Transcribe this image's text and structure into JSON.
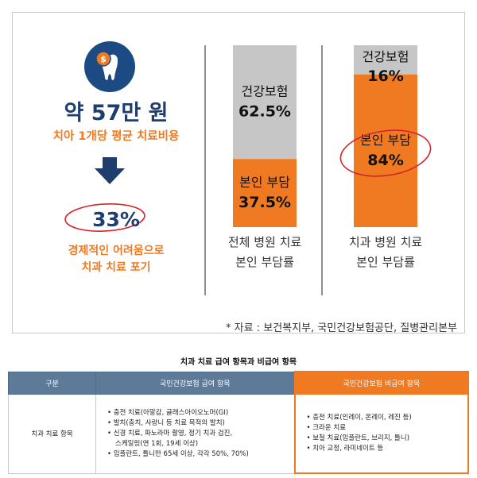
{
  "infographic": {
    "cost_value": "약 57만 원",
    "cost_caption": "치아 1개당 평균 치료비용",
    "gave_up_pct": "33%",
    "gave_up_caption_line1": "경제적인 어려움으로",
    "gave_up_caption_line2": "치과 치료 포기",
    "icons": [
      "dollar-tooth-icon",
      "down-arrow-icon"
    ],
    "colors": {
      "navy": "#1c4a82",
      "orange": "#ef7a22",
      "gray": "#c6c6c6",
      "red": "#d4262a"
    }
  },
  "chart_data": {
    "type": "bar",
    "stacked": true,
    "normalized": true,
    "categories": [
      "전체 병원 치료\n본인 부담률",
      "치과 병원 치료\n본인 부담률"
    ],
    "series": [
      {
        "name": "본인 부담",
        "values": [
          37.5,
          84
        ],
        "color": "#ef7a22"
      },
      {
        "name": "건강보험",
        "values": [
          62.5,
          16
        ],
        "color": "#c6c6c6"
      }
    ],
    "ylim": [
      0,
      100
    ],
    "grid": false,
    "legend": "none"
  },
  "source": "* 자료 : 보건복지부, 국민건강보험공단, 질병관리본부",
  "table": {
    "title": "치과 치료 급여 항목과 비급여 항목",
    "headers": [
      "구분",
      "국민건강보험 급여 항목",
      "국민건강보험 비급여 항목"
    ],
    "row_label": "치과 치료 항목",
    "covered": [
      "• 충전 치료(아말감, 글래스아이오노머(GI)",
      "• 발치(충치, 사랑니 등 치료 목적의 발치)",
      "• 신경 치료, 파노라마 촬영, 정기 치과 검진,",
      "스케일링(연 1회, 19세 이상)",
      "• 임플란트, 틀니만 65세 이상, 각각 50%, 70%)"
    ],
    "noncovered": [
      "• 충전 치료(인레이, 온레이, 레진 등)",
      "• 크라운 치료",
      "• 보철 치료(임플란트, 브리지, 틀니)",
      "• 치아 교정, 라미네이트 등"
    ]
  }
}
